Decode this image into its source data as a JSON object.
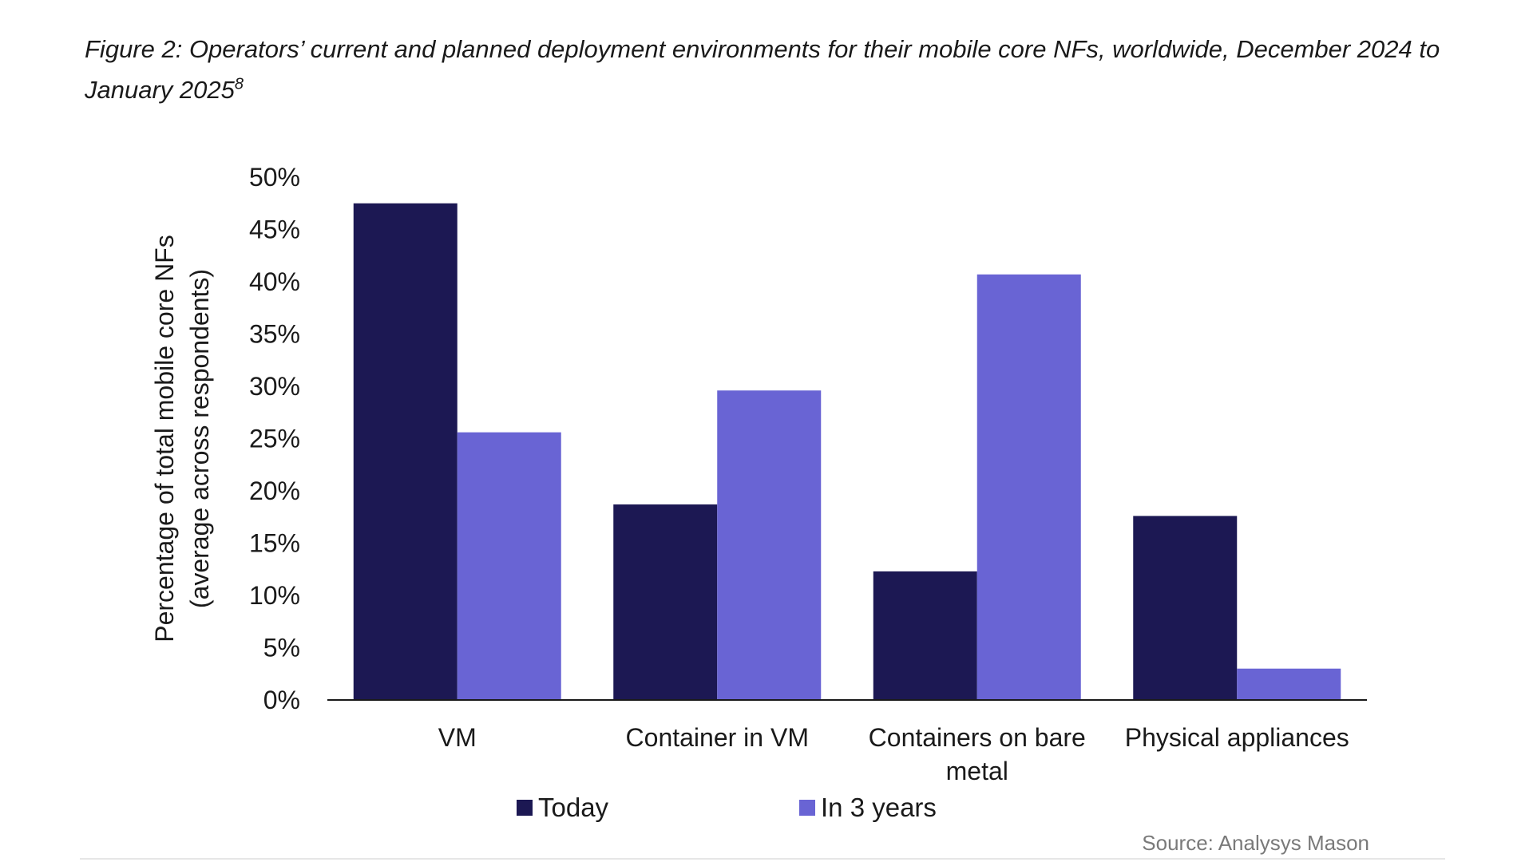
{
  "figure": {
    "title": "Figure 2: Operators’ current and planned deployment environments for their mobile core NFs, worldwide, December 2024 to January 2025",
    "footnote_ref": "8",
    "source": "Source: Analysys Mason"
  },
  "chart_data": {
    "type": "bar",
    "title": "",
    "xlabel": "",
    "ylabel": "Percentage of total mobile core NFs (average across respondents)",
    "ylabel_lines": [
      "Percentage of total mobile core NFs",
      "(average across respondents)"
    ],
    "ylim": [
      0,
      50
    ],
    "yticks": [
      0,
      5,
      10,
      15,
      20,
      25,
      30,
      35,
      40,
      45,
      50
    ],
    "ytick_suffix": "%",
    "grid": false,
    "legend_position": "bottom",
    "categories": [
      "VM",
      "Container in VM",
      "Containers on bare metal",
      "Physical appliances"
    ],
    "category_label_lines": [
      [
        "VM"
      ],
      [
        "Container in VM"
      ],
      [
        "Containers on bare",
        "metal"
      ],
      [
        "Physical appliances"
      ]
    ],
    "series": [
      {
        "name": "Today",
        "color": "#1c1853",
        "values": [
          47.5,
          18.7,
          12.3,
          17.6
        ]
      },
      {
        "name": "In 3 years",
        "color": "#6964d4",
        "values": [
          25.6,
          29.6,
          40.7,
          3.0
        ]
      }
    ]
  }
}
